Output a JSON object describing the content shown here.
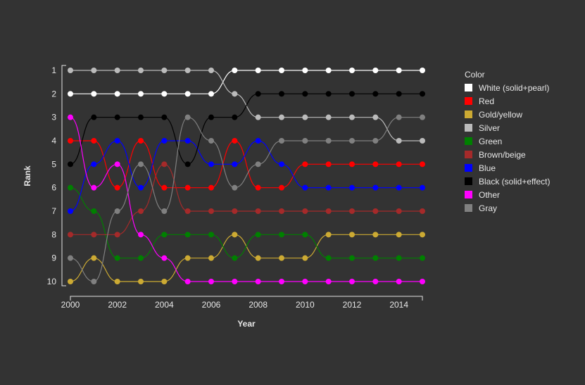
{
  "chart_data": {
    "type": "line",
    "xlabel": "Year",
    "ylabel": "Rank",
    "x": [
      2000,
      2001,
      2002,
      2003,
      2004,
      2005,
      2006,
      2007,
      2008,
      2009,
      2010,
      2011,
      2012,
      2013,
      2014,
      2015
    ],
    "x_ticks": [
      "2000",
      "2002",
      "2004",
      "2006",
      "2008",
      "2010",
      "2012",
      "2014"
    ],
    "y_ticks": [
      "1",
      "2",
      "3",
      "4",
      "5",
      "6",
      "7",
      "8",
      "9",
      "10"
    ],
    "xlim": [
      2000,
      2015
    ],
    "ylim": [
      1,
      10
    ],
    "y_inverted": true,
    "grid": false,
    "legend": {
      "title": "Color",
      "position": "right"
    },
    "series": [
      {
        "name": "White (solid+pearl)",
        "color": "#ffffff",
        "values": [
          2,
          2,
          2,
          2,
          2,
          2,
          2,
          1,
          1,
          1,
          1,
          1,
          1,
          1,
          1,
          1
        ]
      },
      {
        "name": "Red",
        "color": "#ff0000",
        "values": [
          4,
          4,
          6,
          4,
          6,
          6,
          6,
          4,
          6,
          6,
          5,
          5,
          5,
          5,
          5,
          5
        ]
      },
      {
        "name": "Gold/yellow",
        "color": "#ccaa33",
        "values": [
          10,
          9,
          10,
          10,
          10,
          9,
          9,
          8,
          9,
          9,
          9,
          8,
          8,
          8,
          8,
          8
        ]
      },
      {
        "name": "Silver",
        "color": "#bbbbbb",
        "values": [
          1,
          1,
          1,
          1,
          1,
          1,
          1,
          2,
          3,
          3,
          3,
          3,
          3,
          3,
          4,
          4
        ]
      },
      {
        "name": "Green",
        "color": "#008000",
        "values": [
          6,
          7,
          9,
          9,
          8,
          8,
          8,
          9,
          8,
          8,
          8,
          9,
          9,
          9,
          9,
          9
        ]
      },
      {
        "name": "Brown/beige",
        "color": "#a52a2a",
        "values": [
          8,
          8,
          8,
          7,
          5,
          7,
          7,
          7,
          7,
          7,
          7,
          7,
          7,
          7,
          7,
          7
        ]
      },
      {
        "name": "Blue",
        "color": "#0000ff",
        "values": [
          7,
          5,
          4,
          6,
          4,
          4,
          5,
          5,
          4,
          5,
          6,
          6,
          6,
          6,
          6,
          6
        ]
      },
      {
        "name": "Black (solid+effect)",
        "color": "#000000",
        "values": [
          5,
          3,
          3,
          3,
          3,
          5,
          3,
          3,
          2,
          2,
          2,
          2,
          2,
          2,
          2,
          2
        ]
      },
      {
        "name": "Other",
        "color": "#ff00ff",
        "values": [
          3,
          6,
          5,
          8,
          9,
          10,
          10,
          10,
          10,
          10,
          10,
          10,
          10,
          10,
          10,
          10
        ]
      },
      {
        "name": "Gray",
        "color": "#808080",
        "values": [
          9,
          10,
          7,
          5,
          7,
          3,
          4,
          6,
          5,
          4,
          4,
          4,
          4,
          4,
          3,
          3
        ]
      }
    ]
  }
}
